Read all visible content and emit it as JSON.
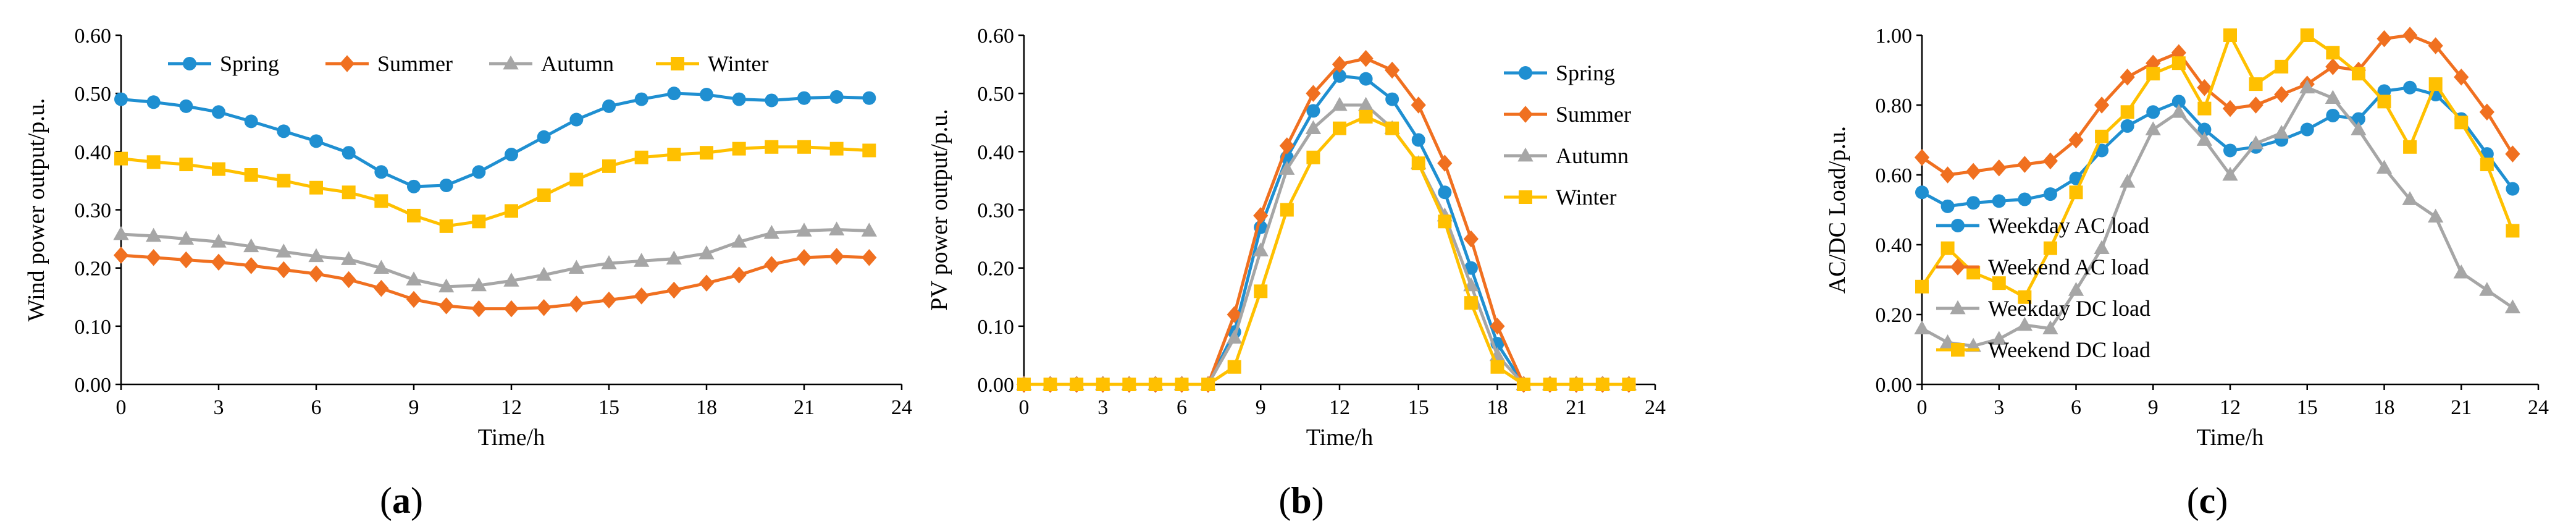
{
  "chart_data": [
    {
      "type": "line",
      "panel_label": "a",
      "xlabel": "Time/h",
      "ylabel": "Wind power output/p.u.",
      "x": [
        0,
        1,
        2,
        3,
        4,
        5,
        6,
        7,
        8,
        9,
        10,
        11,
        12,
        13,
        14,
        15,
        16,
        17,
        18,
        19,
        20,
        21,
        22,
        23
      ],
      "xlim": [
        0,
        24
      ],
      "xticks": [
        "0",
        "3",
        "6",
        "9",
        "12",
        "15",
        "18",
        "21",
        "24"
      ],
      "ylim": [
        0,
        0.6
      ],
      "yticks": [
        "0.00",
        "0.10",
        "0.20",
        "0.30",
        "0.40",
        "0.50",
        "0.60"
      ],
      "legend_position": "top",
      "series": [
        {
          "name": "Spring",
          "color": "#1f8fd1",
          "marker": "circle",
          "values": [
            0.49,
            0.485,
            0.478,
            0.468,
            0.452,
            0.435,
            0.418,
            0.398,
            0.365,
            0.34,
            0.342,
            0.365,
            0.395,
            0.425,
            0.455,
            0.478,
            0.49,
            0.5,
            0.498,
            0.49,
            0.488,
            0.492,
            0.494,
            0.492
          ]
        },
        {
          "name": "Summer",
          "color": "#f07020",
          "marker": "diamond",
          "values": [
            0.222,
            0.218,
            0.214,
            0.21,
            0.204,
            0.197,
            0.19,
            0.18,
            0.165,
            0.146,
            0.135,
            0.13,
            0.13,
            0.132,
            0.138,
            0.145,
            0.152,
            0.162,
            0.174,
            0.188,
            0.206,
            0.218,
            0.22,
            0.218
          ]
        },
        {
          "name": "Autumn",
          "color": "#a6a6a6",
          "marker": "triangle",
          "values": [
            0.258,
            0.255,
            0.25,
            0.245,
            0.237,
            0.228,
            0.22,
            0.215,
            0.2,
            0.18,
            0.168,
            0.17,
            0.178,
            0.188,
            0.2,
            0.208,
            0.212,
            0.216,
            0.225,
            0.245,
            0.26,
            0.264,
            0.266,
            0.264
          ]
        },
        {
          "name": "Winter",
          "color": "#ffc000",
          "marker": "square",
          "values": [
            0.388,
            0.382,
            0.378,
            0.37,
            0.36,
            0.35,
            0.338,
            0.33,
            0.315,
            0.29,
            0.272,
            0.28,
            0.298,
            0.325,
            0.352,
            0.375,
            0.39,
            0.395,
            0.398,
            0.405,
            0.408,
            0.408,
            0.405,
            0.402
          ]
        }
      ]
    },
    {
      "type": "line",
      "panel_label": "b",
      "xlabel": "Time/h",
      "ylabel": "PV power output/p.u.",
      "x": [
        0,
        1,
        2,
        3,
        4,
        5,
        6,
        7,
        8,
        9,
        10,
        11,
        12,
        13,
        14,
        15,
        16,
        17,
        18,
        19,
        20,
        21,
        22,
        23
      ],
      "xlim": [
        0,
        24
      ],
      "xticks": [
        "0",
        "3",
        "6",
        "9",
        "12",
        "15",
        "18",
        "21",
        "24"
      ],
      "ylim": [
        0,
        0.6
      ],
      "yticks": [
        "0.00",
        "0.10",
        "0.20",
        "0.30",
        "0.40",
        "0.50",
        "0.60"
      ],
      "legend_position": "top-right",
      "series": [
        {
          "name": "Spring",
          "color": "#1f8fd1",
          "marker": "circle",
          "values": [
            0,
            0,
            0,
            0,
            0,
            0,
            0,
            0,
            0.09,
            0.27,
            0.39,
            0.47,
            0.53,
            0.525,
            0.49,
            0.42,
            0.33,
            0.2,
            0.07,
            0,
            0,
            0,
            0,
            0
          ]
        },
        {
          "name": "Summer",
          "color": "#f07020",
          "marker": "diamond",
          "values": [
            0,
            0,
            0,
            0,
            0,
            0,
            0,
            0,
            0.12,
            0.29,
            0.41,
            0.5,
            0.55,
            0.56,
            0.54,
            0.48,
            0.38,
            0.25,
            0.1,
            0,
            0,
            0,
            0,
            0
          ]
        },
        {
          "name": "Autumn",
          "color": "#a6a6a6",
          "marker": "triangle",
          "values": [
            0,
            0,
            0,
            0,
            0,
            0,
            0,
            0,
            0.08,
            0.23,
            0.37,
            0.44,
            0.48,
            0.48,
            0.44,
            0.38,
            0.29,
            0.17,
            0.05,
            0,
            0,
            0,
            0,
            0
          ]
        },
        {
          "name": "Winter",
          "color": "#ffc000",
          "marker": "square",
          "values": [
            0,
            0,
            0,
            0,
            0,
            0,
            0,
            0,
            0.03,
            0.16,
            0.3,
            0.39,
            0.44,
            0.46,
            0.44,
            0.38,
            0.28,
            0.14,
            0.03,
            0,
            0,
            0,
            0,
            0
          ]
        }
      ]
    },
    {
      "type": "line",
      "panel_label": "c",
      "xlabel": "Time/h",
      "ylabel": "AC/DC Load/p.u.",
      "x": [
        0,
        1,
        2,
        3,
        4,
        5,
        6,
        7,
        8,
        9,
        10,
        11,
        12,
        13,
        14,
        15,
        16,
        17,
        18,
        19,
        20,
        21,
        22,
        23
      ],
      "xlim": [
        0,
        24
      ],
      "xticks": [
        "0",
        "3",
        "6",
        "9",
        "12",
        "15",
        "18",
        "21",
        "24"
      ],
      "ylim": [
        0,
        1.0
      ],
      "yticks": [
        "0.00",
        "0.20",
        "0.40",
        "0.60",
        "0.80",
        "1.00"
      ],
      "legend_position": "lower-left",
      "series": [
        {
          "name": "Weekday AC load",
          "color": "#1f8fd1",
          "marker": "circle",
          "values": [
            0.55,
            0.51,
            0.52,
            0.525,
            0.53,
            0.545,
            0.59,
            0.67,
            0.74,
            0.78,
            0.81,
            0.73,
            0.67,
            0.68,
            0.7,
            0.73,
            0.77,
            0.76,
            0.84,
            0.85,
            0.83,
            0.76,
            0.66,
            0.56
          ]
        },
        {
          "name": "Weekend AC load",
          "color": "#f07020",
          "marker": "diamond",
          "values": [
            0.65,
            0.6,
            0.61,
            0.62,
            0.63,
            0.64,
            0.7,
            0.8,
            0.88,
            0.92,
            0.95,
            0.85,
            0.79,
            0.8,
            0.83,
            0.86,
            0.91,
            0.9,
            0.99,
            1.0,
            0.97,
            0.88,
            0.78,
            0.66
          ]
        },
        {
          "name": "Weekday DC load",
          "color": "#a6a6a6",
          "marker": "triangle",
          "values": [
            0.16,
            0.12,
            0.11,
            0.13,
            0.17,
            0.16,
            0.27,
            0.39,
            0.58,
            0.73,
            0.78,
            0.7,
            0.6,
            0.69,
            0.72,
            0.85,
            0.82,
            0.73,
            0.62,
            0.53,
            0.48,
            0.32,
            0.27,
            0.22
          ]
        },
        {
          "name": "Weekend DC load",
          "color": "#ffc000",
          "marker": "square",
          "values": [
            0.28,
            0.39,
            0.32,
            0.29,
            0.25,
            0.39,
            0.55,
            0.71,
            0.78,
            0.89,
            0.92,
            0.79,
            1.0,
            0.86,
            0.91,
            1.0,
            0.95,
            0.89,
            0.81,
            0.68,
            0.86,
            0.75,
            0.63,
            0.44
          ]
        }
      ]
    }
  ]
}
